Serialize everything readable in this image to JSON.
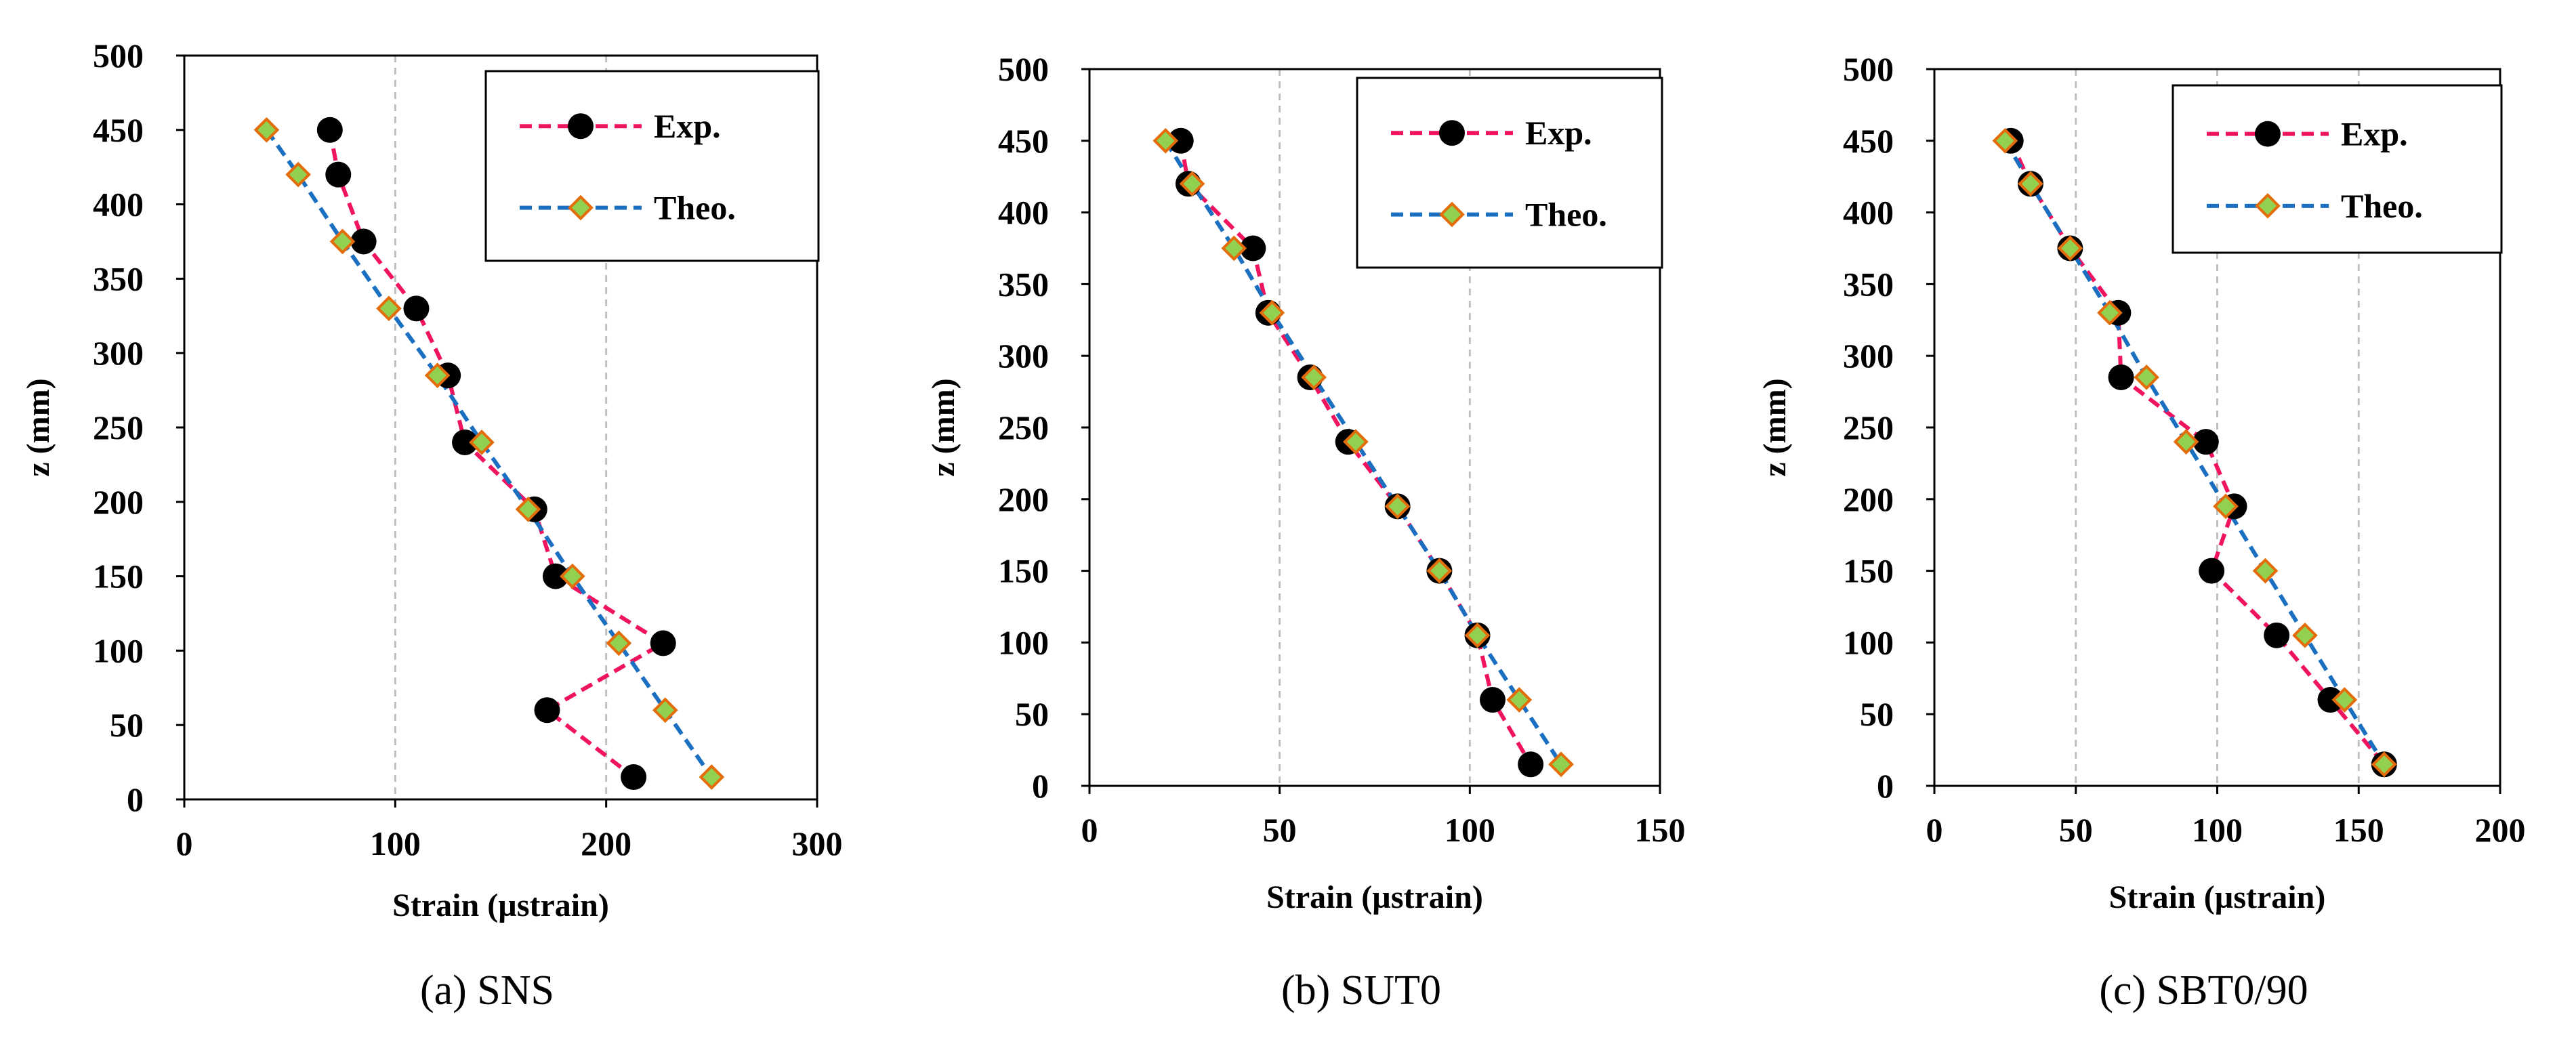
{
  "colors": {
    "exp": "#f0135f",
    "theo": "#1a6fc0",
    "marker_exp": "#000000",
    "marker_theo_fill": "#92d050",
    "marker_theo_edge": "#e46c0a",
    "grid": "#bfbfbf"
  },
  "chart_data": [
    {
      "type": "line",
      "caption": "(a) SNS",
      "xlabel": "Strain (µstrain)",
      "ylabel": "z (mm)",
      "xlim": [
        0,
        300
      ],
      "ylim": [
        0,
        500
      ],
      "xticks": [
        0,
        100,
        200,
        300
      ],
      "yticks": [
        0,
        50,
        100,
        150,
        200,
        250,
        300,
        350,
        400,
        450,
        500
      ],
      "legend_position": "top-right",
      "series": [
        {
          "name": "Exp.",
          "x": [
            69,
            73,
            85,
            110,
            125,
            133,
            166,
            176,
            227,
            172,
            213
          ],
          "z": [
            450,
            420,
            375,
            330,
            285,
            240,
            195,
            150,
            105,
            60,
            15
          ]
        },
        {
          "name": "Theo.",
          "x": [
            39,
            54,
            75,
            97,
            120,
            141,
            163,
            184,
            206,
            228,
            250
          ],
          "z": [
            450,
            420,
            375,
            330,
            285,
            240,
            195,
            150,
            105,
            60,
            15
          ]
        }
      ]
    },
    {
      "type": "line",
      "caption": "(b) SUT0",
      "xlabel": "Strain (µstrain)",
      "ylabel": "z (mm)",
      "xlim": [
        0,
        150
      ],
      "ylim": [
        0,
        500
      ],
      "xticks": [
        0,
        50,
        100,
        150
      ],
      "yticks": [
        0,
        50,
        100,
        150,
        200,
        250,
        300,
        350,
        400,
        450,
        500
      ],
      "legend_position": "top-right",
      "series": [
        {
          "name": "Exp.",
          "x": [
            24,
            26,
            43,
            47,
            58,
            68,
            81,
            92,
            102,
            106,
            116
          ],
          "z": [
            450,
            420,
            375,
            330,
            285,
            240,
            195,
            150,
            105,
            60,
            15
          ]
        },
        {
          "name": "Theo.",
          "x": [
            20,
            27,
            38,
            48,
            59,
            70,
            81,
            92,
            102,
            113,
            124
          ],
          "z": [
            450,
            420,
            375,
            330,
            285,
            240,
            195,
            150,
            105,
            60,
            15
          ]
        }
      ]
    },
    {
      "type": "line",
      "caption": "(c) SBT0/90",
      "xlabel": "Strain (µstrain)",
      "ylabel": "z (mm)",
      "xlim": [
        0,
        200
      ],
      "ylim": [
        0,
        500
      ],
      "xticks": [
        0,
        50,
        100,
        150,
        200
      ],
      "yticks": [
        0,
        50,
        100,
        150,
        200,
        250,
        300,
        350,
        400,
        450,
        500
      ],
      "legend_position": "top-right",
      "series": [
        {
          "name": "Exp.",
          "x": [
            27,
            34,
            48,
            65,
            66,
            96,
            106,
            98,
            121,
            140,
            159
          ],
          "z": [
            450,
            420,
            375,
            330,
            285,
            240,
            195,
            150,
            105,
            60,
            15
          ]
        },
        {
          "name": "Theo.",
          "x": [
            25,
            34,
            48,
            62,
            75,
            89,
            103,
            117,
            131,
            145,
            159
          ],
          "z": [
            450,
            420,
            375,
            330,
            285,
            240,
            195,
            150,
            105,
            60,
            15
          ]
        }
      ]
    }
  ]
}
